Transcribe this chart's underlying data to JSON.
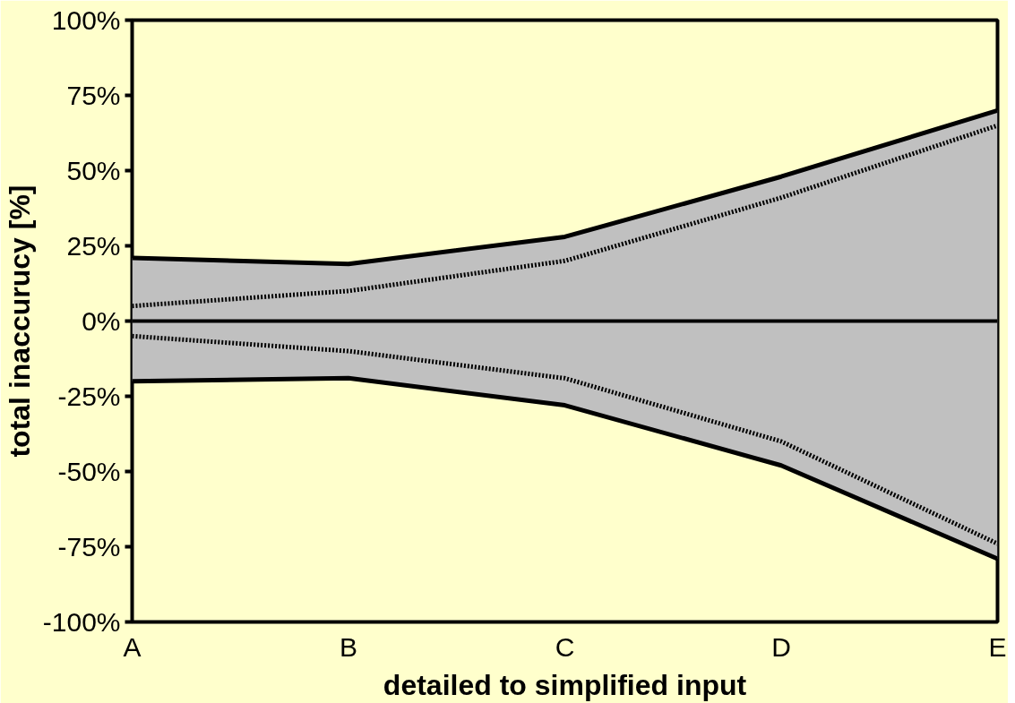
{
  "chart_data": {
    "type": "line",
    "xlabel": "detailed to simplified input",
    "ylabel": "total inaccurucy [%]",
    "categories": [
      "A",
      "B",
      "C",
      "D",
      "E"
    ],
    "series": [
      {
        "type": "area",
        "color": "#c0c0c0",
        "values": [
          21,
          19,
          28,
          48,
          70
        ]
      },
      {
        "type": "area",
        "color": "#c0c0c0",
        "values": [
          -20,
          -19,
          -28,
          -48,
          -79
        ]
      },
      {
        "color": "#000000",
        "line_style": "dotted",
        "values": [
          5,
          10,
          20,
          41,
          65
        ]
      },
      {
        "color": "#000000",
        "line_style": "dotted",
        "values": [
          -5,
          -10,
          -19,
          -40,
          -74
        ]
      }
    ],
    "ylim": [
      -100,
      100
    ],
    "yticks": [
      {
        "value": -100,
        "label": "-100%"
      },
      {
        "value": -75,
        "label": "-75%"
      },
      {
        "value": -50,
        "label": "-50%"
      },
      {
        "value": -25,
        "label": "-25%"
      },
      {
        "value": 0,
        "label": "0%"
      },
      {
        "value": 25,
        "label": "25%"
      },
      {
        "value": 50,
        "label": "50%"
      },
      {
        "value": 75,
        "label": "75%"
      },
      {
        "value": 100,
        "label": "100%"
      }
    ],
    "ref_lines": [
      {
        "axis": "y",
        "value": 0,
        "color": "#000000"
      }
    ],
    "grid": false
  }
}
